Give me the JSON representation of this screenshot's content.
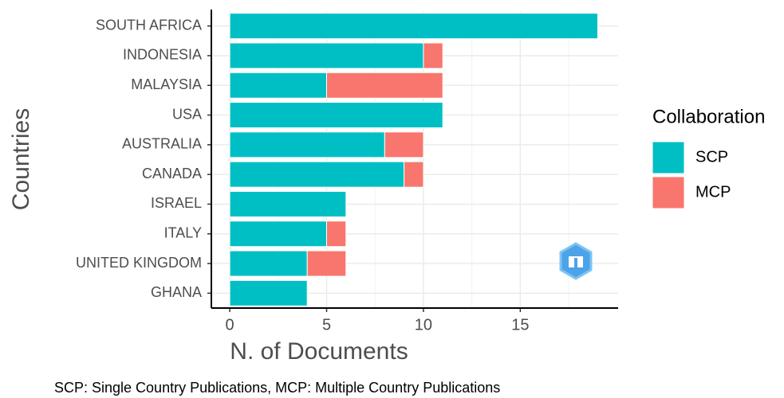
{
  "chart_data": {
    "type": "bar",
    "orientation": "horizontal",
    "stacked": true,
    "y_label": "Countries",
    "x_label": "N. of Documents",
    "caption": "SCP: Single Country Publications, MCP: Multiple Country Publications",
    "legend_title": "Collaboration",
    "legend": "right",
    "categories": [
      "SOUTH AFRICA",
      "INDONESIA",
      "MALAYSIA",
      "USA",
      "AUSTRALIA",
      "CANADA",
      "ISRAEL",
      "ITALY",
      "UNITED KINGDOM",
      "GHANA"
    ],
    "series": [
      {
        "name": "SCP",
        "color": "#00BFC4",
        "values": [
          19,
          10,
          5,
          11,
          8,
          9,
          6,
          5,
          4,
          4
        ]
      },
      {
        "name": "MCP",
        "color": "#F8766D",
        "values": [
          0,
          1,
          6,
          0,
          2,
          1,
          0,
          1,
          2,
          0
        ]
      }
    ],
    "xlim": [
      -0.95,
      20.05
    ],
    "xticks": [
      0,
      5,
      10,
      15
    ],
    "grid": true
  }
}
